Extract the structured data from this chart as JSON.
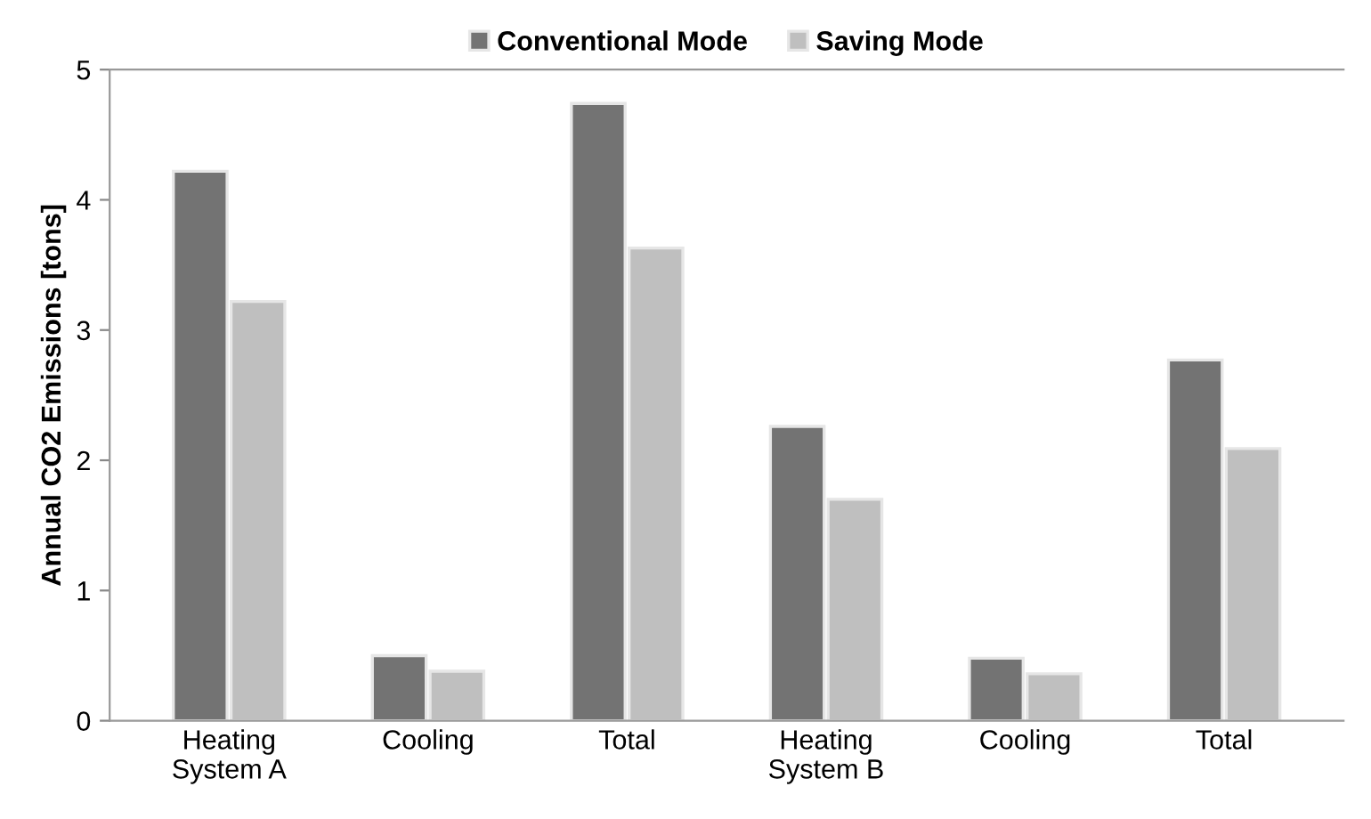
{
  "chart_data": {
    "type": "bar",
    "ylabel": "Annual CO2 Emissions [tons]",
    "categories": [
      "Heating\nSystem A",
      "Cooling",
      "Total",
      "Heating\nSystem B",
      "Cooling",
      "Total"
    ],
    "series": [
      {
        "name": "Conventional Mode",
        "color": "#737373",
        "values": [
          4.22,
          0.5,
          4.74,
          2.26,
          0.48,
          2.77
        ]
      },
      {
        "name": "Saving Mode",
        "color": "#bfbfbf",
        "values": [
          3.22,
          0.38,
          3.63,
          1.7,
          0.36,
          2.09
        ]
      }
    ],
    "ylim": [
      0,
      5
    ],
    "yticks": [
      0,
      1,
      2,
      3,
      4,
      5
    ],
    "grid": false,
    "legend": "top"
  }
}
